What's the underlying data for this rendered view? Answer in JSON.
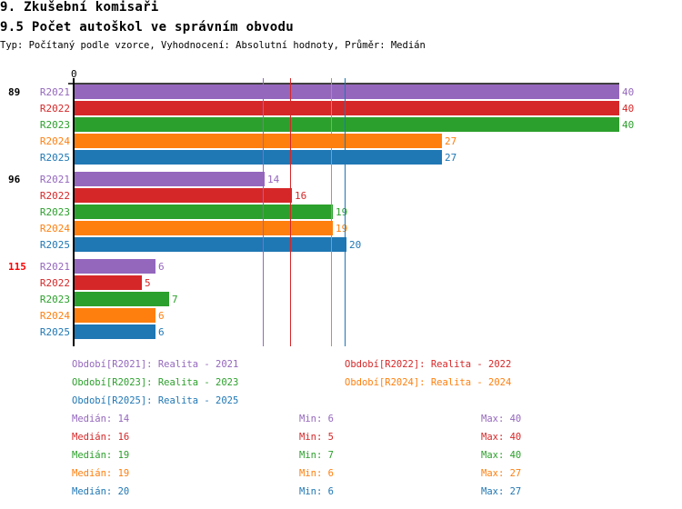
{
  "header": {
    "title": "9. Zkušební komisaři",
    "subtitle": "9.5 Počet autoškol ve správním obvodu",
    "info": "Typ: Počítaný podle vzorce, Vyhodnocení: Absolutní hodnoty, Průměr: Medián"
  },
  "chart_data": {
    "type": "bar",
    "orientation": "horizontal",
    "axis_zero_label": "0",
    "xlim": [
      0,
      40
    ],
    "groups": [
      {
        "label": "89",
        "highlight": false
      },
      {
        "label": "96",
        "highlight": false
      },
      {
        "label": "115",
        "highlight": true
      }
    ],
    "series": [
      {
        "name": "R2021",
        "legend": "Období[R2021]: Realita - 2021",
        "color": "#9467bd",
        "values": [
          40,
          14,
          6
        ],
        "median": 14,
        "min": 6,
        "max": 40
      },
      {
        "name": "R2022",
        "legend": "Období[R2022]: Realita - 2022",
        "color": "#d62728",
        "values": [
          40,
          16,
          5
        ],
        "median": 16,
        "min": 5,
        "max": 40
      },
      {
        "name": "R2023",
        "legend": "Období[R2023]: Realita - 2023",
        "color": "#2ca02c",
        "values": [
          40,
          19,
          7
        ],
        "median": 19,
        "min": 7,
        "max": 40
      },
      {
        "name": "R2024",
        "legend": "Období[R2024]: Realita - 2024",
        "color": "#ff7f0e",
        "values": [
          27,
          19,
          6
        ],
        "median": 19,
        "min": 6,
        "max": 27
      },
      {
        "name": "R2025",
        "legend": "Období[R2025]: Realita - 2025",
        "color": "#1f77b4",
        "values": [
          27,
          20,
          6
        ],
        "median": 20,
        "min": 6,
        "max": 27
      }
    ],
    "stat_labels": {
      "median": "Medián: ",
      "min": "Min: ",
      "max": "Max: "
    }
  }
}
